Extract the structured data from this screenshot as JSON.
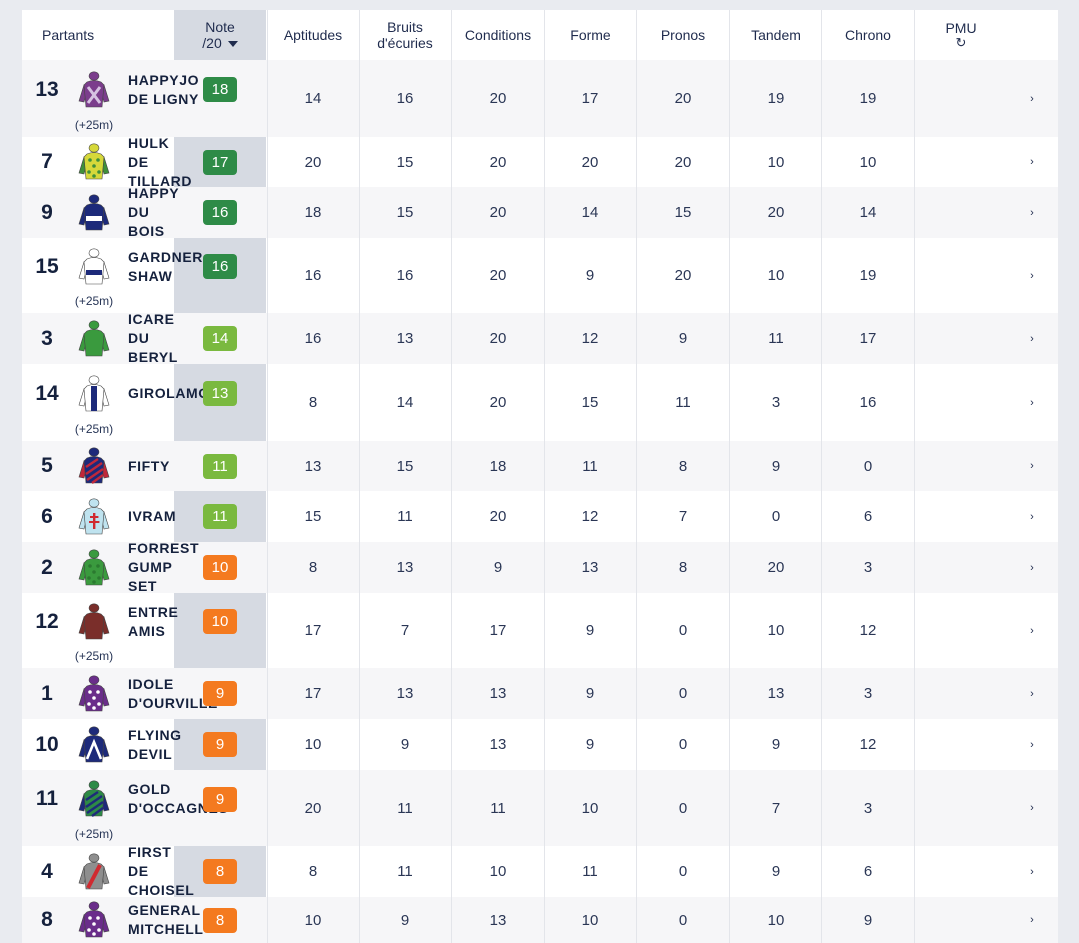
{
  "colors": {
    "green_dark": "#2e8b47",
    "green_light": "#7ab93f",
    "orange": "#f47a1f",
    "text": "#15213d"
  },
  "header": {
    "partants": "Partants",
    "note_line1": "Note",
    "note_line2": "/20",
    "sort_icon": "triangle-down-icon",
    "aptitudes": "Aptitudes",
    "bruits_line1": "Bruits",
    "bruits_line2": "d'écuries",
    "conditions": "Conditions",
    "forme": "Forme",
    "pronos": "Pronos",
    "tandem": "Tandem",
    "chrono": "Chrono",
    "pmu": "PMU",
    "pmu_icon": "refresh-icon",
    "pmu_icon_glyph": "↻"
  },
  "chevron_glyph": "›",
  "rows": [
    {
      "num": "13",
      "name": "HAPPYJO\nDE LIGNY",
      "ext": "(+25m)",
      "note": "18",
      "note_color": "green_dark",
      "aptitudes": "14",
      "bruits": "16",
      "conditions": "20",
      "forme": "17",
      "pronos": "20",
      "tandem": "19",
      "chrono": "19",
      "pmu": "",
      "silk": {
        "jacket": "#7b3d8c",
        "sleeves": "#7b3d8c",
        "pattern": "cross",
        "pcolor": "#d6c2e2"
      }
    },
    {
      "num": "7",
      "name": "HULK\nDE\nTILLARD",
      "ext": "",
      "note": "17",
      "note_color": "green_dark",
      "aptitudes": "20",
      "bruits": "15",
      "conditions": "20",
      "forme": "20",
      "pronos": "20",
      "tandem": "10",
      "chrono": "10",
      "pmu": "",
      "silk": {
        "jacket": "#d6d83a",
        "sleeves": "#3f8f3a",
        "pattern": "stars",
        "pcolor": "#3f8f3a"
      }
    },
    {
      "num": "9",
      "name": "HAPPY\nDU\nBOIS",
      "ext": "",
      "note": "16",
      "note_color": "green_dark",
      "aptitudes": "18",
      "bruits": "15",
      "conditions": "20",
      "forme": "14",
      "pronos": "15",
      "tandem": "20",
      "chrono": "14",
      "pmu": "",
      "silk": {
        "jacket": "#1d2a7a",
        "sleeves": "#1d2a7a",
        "pattern": "band",
        "pcolor": "#ffffff"
      }
    },
    {
      "num": "15",
      "name": "GARDNER\nSHAW",
      "ext": "(+25m)",
      "note": "16",
      "note_color": "green_dark",
      "aptitudes": "16",
      "bruits": "16",
      "conditions": "20",
      "forme": "9",
      "pronos": "20",
      "tandem": "10",
      "chrono": "19",
      "pmu": "",
      "silk": {
        "jacket": "#ffffff",
        "sleeves": "#ffffff",
        "pattern": "band",
        "pcolor": "#1d2a7a"
      }
    },
    {
      "num": "3",
      "name": "ICARE\nDU\nBERYL",
      "ext": "",
      "note": "14",
      "note_color": "green_light",
      "aptitudes": "16",
      "bruits": "13",
      "conditions": "20",
      "forme": "12",
      "pronos": "9",
      "tandem": "11",
      "chrono": "17",
      "pmu": "",
      "silk": {
        "jacket": "#3a9a3e",
        "sleeves": "#3a9a3e",
        "pattern": "none",
        "pcolor": "#888888"
      }
    },
    {
      "num": "14",
      "name": "GIROLAMO",
      "ext": "(+25m)",
      "note": "13",
      "note_color": "green_light",
      "aptitudes": "8",
      "bruits": "14",
      "conditions": "20",
      "forme": "15",
      "pronos": "11",
      "tandem": "3",
      "chrono": "16",
      "pmu": "",
      "silk": {
        "jacket": "#ffffff",
        "sleeves": "#ffffff",
        "pattern": "vstripe",
        "pcolor": "#1d2a7a"
      }
    },
    {
      "num": "5",
      "name": "FIFTY",
      "ext": "",
      "note": "11",
      "note_color": "green_light",
      "aptitudes": "13",
      "bruits": "15",
      "conditions": "18",
      "forme": "11",
      "pronos": "8",
      "tandem": "9",
      "chrono": "0",
      "pmu": "",
      "silk": {
        "jacket": "#1d2a7a",
        "sleeves": "#c0283a",
        "pattern": "diag",
        "pcolor": "#c0283a"
      }
    },
    {
      "num": "6",
      "name": "IVRAM",
      "ext": "",
      "note": "11",
      "note_color": "green_light",
      "aptitudes": "15",
      "bruits": "11",
      "conditions": "20",
      "forme": "12",
      "pronos": "7",
      "tandem": "0",
      "chrono": "6",
      "pmu": "",
      "silk": {
        "jacket": "#bfe3ef",
        "sleeves": "#bfe3ef",
        "pattern": "lorraine",
        "pcolor": "#d02a30"
      }
    },
    {
      "num": "2",
      "name": "FORREST\nGUMP\nSET",
      "ext": "",
      "note": "10",
      "note_color": "orange",
      "aptitudes": "8",
      "bruits": "13",
      "conditions": "9",
      "forme": "13",
      "pronos": "8",
      "tandem": "20",
      "chrono": "3",
      "pmu": "",
      "silk": {
        "jacket": "#3a9a3e",
        "sleeves": "#3a9a3e",
        "pattern": "stars",
        "pcolor": "#2b7a30"
      }
    },
    {
      "num": "12",
      "name": "ENTRE\nAMIS",
      "ext": "(+25m)",
      "note": "10",
      "note_color": "orange",
      "aptitudes": "17",
      "bruits": "7",
      "conditions": "17",
      "forme": "9",
      "pronos": "0",
      "tandem": "10",
      "chrono": "12",
      "pmu": "",
      "silk": {
        "jacket": "#7a2e2a",
        "sleeves": "#7a2e2a",
        "pattern": "none",
        "pcolor": "#d02a30"
      }
    },
    {
      "num": "1",
      "name": "IDOLE\nD'OURVILLE",
      "ext": "",
      "note": "9",
      "note_color": "orange",
      "aptitudes": "17",
      "bruits": "13",
      "conditions": "13",
      "forme": "9",
      "pronos": "0",
      "tandem": "13",
      "chrono": "3",
      "pmu": "",
      "silk": {
        "jacket": "#6a2d8a",
        "sleeves": "#6a2d8a",
        "pattern": "stars",
        "pcolor": "#ffffff"
      }
    },
    {
      "num": "10",
      "name": "FLYING\nDEVIL",
      "ext": "",
      "note": "9",
      "note_color": "orange",
      "aptitudes": "10",
      "bruits": "9",
      "conditions": "13",
      "forme": "9",
      "pronos": "0",
      "tandem": "9",
      "chrono": "12",
      "pmu": "",
      "silk": {
        "jacket": "#1d2a7a",
        "sleeves": "#1d2a7a",
        "pattern": "chevron",
        "pcolor": "#ffffff"
      }
    },
    {
      "num": "11",
      "name": "GOLD\nD'OCCAGNES",
      "ext": "(+25m)",
      "note": "9",
      "note_color": "orange",
      "aptitudes": "20",
      "bruits": "11",
      "conditions": "11",
      "forme": "10",
      "pronos": "0",
      "tandem": "7",
      "chrono": "3",
      "pmu": "",
      "silk": {
        "jacket": "#2d8a46",
        "sleeves": "#1d2a7a",
        "pattern": "diag",
        "pcolor": "#1d2a7a"
      }
    },
    {
      "num": "4",
      "name": "FIRST\nDE\nCHOISEL",
      "ext": "",
      "note": "8",
      "note_color": "orange",
      "aptitudes": "8",
      "bruits": "11",
      "conditions": "10",
      "forme": "11",
      "pronos": "0",
      "tandem": "9",
      "chrono": "6",
      "pmu": "",
      "silk": {
        "jacket": "#8e8e8e",
        "sleeves": "#8e8e8e",
        "pattern": "sash",
        "pcolor": "#d02a30"
      }
    },
    {
      "num": "8",
      "name": "GENERAL\nMITCHELL",
      "ext": "",
      "note": "8",
      "note_color": "orange",
      "aptitudes": "10",
      "bruits": "9",
      "conditions": "13",
      "forme": "10",
      "pronos": "0",
      "tandem": "10",
      "chrono": "9",
      "pmu": "",
      "silk": {
        "jacket": "#6a2d8a",
        "sleeves": "#6a2d8a",
        "pattern": "stars",
        "pcolor": "#ffffff"
      }
    }
  ]
}
